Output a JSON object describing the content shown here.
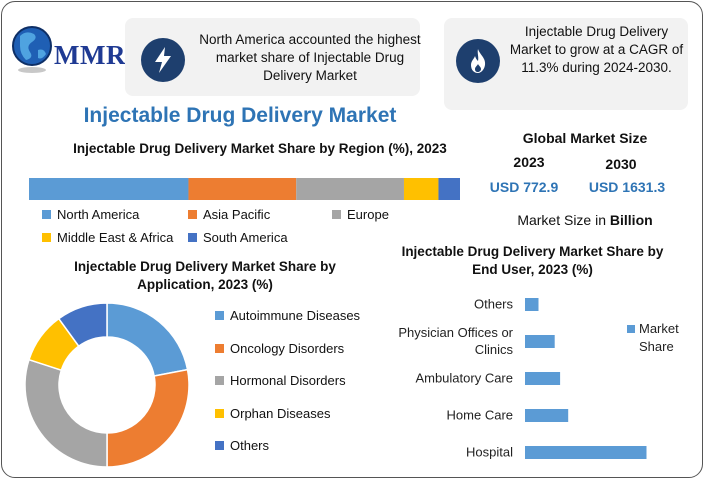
{
  "logo": {
    "text": "MMR",
    "icon": "globe-icon"
  },
  "facts": [
    {
      "icon": "lightning-icon",
      "text": "North America accounted the highest market share of Injectable Drug Delivery Market"
    },
    {
      "icon": "flame-icon",
      "text": "Injectable Drug Delivery Market to grow at a CAGR of 11.3% during 2024-2030."
    }
  ],
  "main_title": "Injectable Drug Delivery Market",
  "market_size": {
    "title": "Global Market Size",
    "years": [
      {
        "year": "2023",
        "value": "USD 772.9"
      },
      {
        "year": "2030",
        "value": "USD 1631.3"
      }
    ],
    "unit_prefix": "Market Size in ",
    "unit_bold": "Billion"
  },
  "colors": {
    "blue": "#5b9bd5",
    "orange": "#ed7d31",
    "gray": "#a5a5a5",
    "gold": "#ffc000",
    "navy": "#4472c4",
    "title_blue": "#2e74b5",
    "badge": "#1e3f6e"
  },
  "chart_data": [
    {
      "type": "bar",
      "orientation": "horizontal-stacked-100",
      "title": "Injectable Drug Delivery Market Share by Region (%), 2023",
      "categories": [
        "North America",
        "Asia Pacific",
        "Europe",
        "Middle East & Africa",
        "South America"
      ],
      "values": [
        37,
        25,
        25,
        8,
        5
      ],
      "colors": [
        "#5b9bd5",
        "#ed7d31",
        "#a5a5a5",
        "#ffc000",
        "#4472c4"
      ],
      "legend": "bottom"
    },
    {
      "type": "pie",
      "variant": "donut",
      "title": "Injectable Drug Delivery Market Share by Application, 2023 (%)",
      "categories": [
        "Autoimmune Diseases",
        "Oncology Disorders",
        "Hormonal Disorders",
        "Orphan Diseases",
        "Others"
      ],
      "values": [
        22,
        28,
        30,
        10,
        10
      ],
      "colors": [
        "#5b9bd5",
        "#ed7d31",
        "#a5a5a5",
        "#ffc000",
        "#4472c4"
      ],
      "legend": "right"
    },
    {
      "type": "bar",
      "orientation": "horizontal",
      "title": "Injectable Drug Delivery Market Share by End User, 2023 (%)",
      "categories": [
        "Others",
        "Physician Offices or Clinics",
        "Ambulatory Care",
        "Home Care",
        "Hospital"
      ],
      "category_lines": [
        [
          "Others"
        ],
        [
          "Physician Offices or",
          "Clinics"
        ],
        [
          "Ambulatory Care"
        ],
        [
          "Home Care"
        ],
        [
          "Hospital"
        ]
      ],
      "series": [
        {
          "name": "Market Share",
          "values": [
            5,
            11,
            13,
            16,
            45
          ]
        }
      ],
      "xlim": [
        0,
        50
      ],
      "color": "#5b9bd5",
      "legend": "right"
    }
  ]
}
